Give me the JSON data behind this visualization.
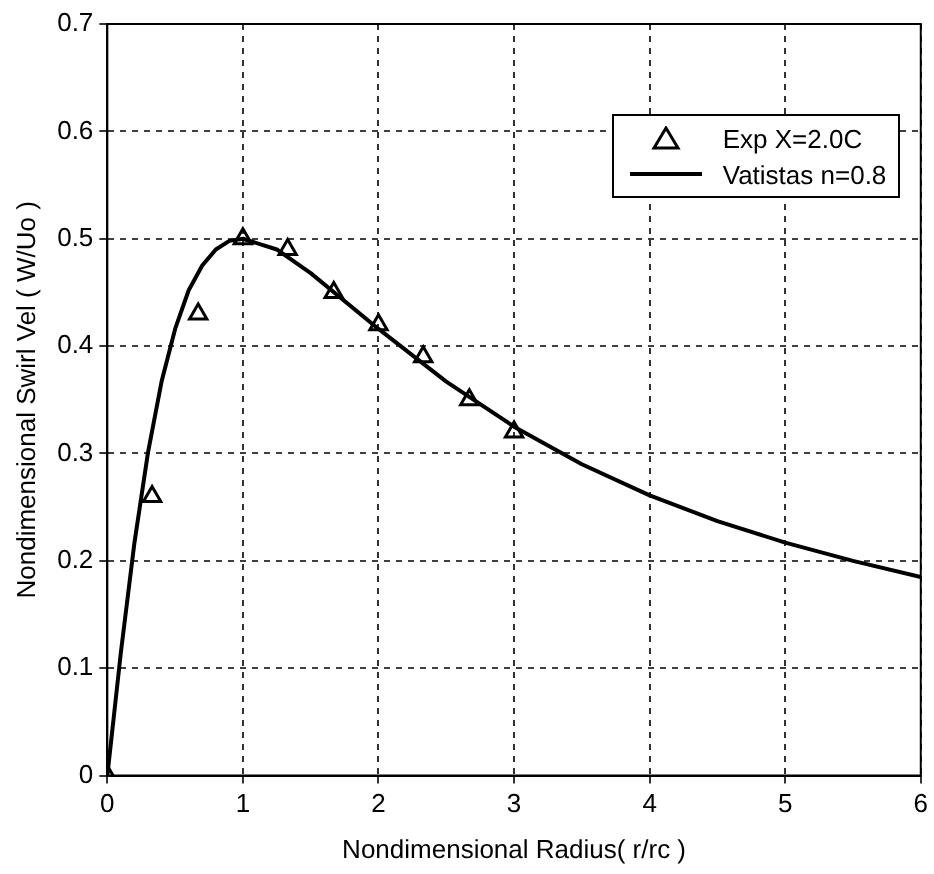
{
  "chart_data": {
    "type": "line",
    "xlabel": "Nondimensional Radius( r/rc )",
    "ylabel": "Nondimensional Swirl Vel ( W/Uo )",
    "xlim": [
      0,
      6
    ],
    "xticks": [
      0,
      1,
      2,
      3,
      4,
      5,
      6
    ],
    "ylim": [
      0,
      0.7
    ],
    "yticks": [
      0,
      0.1,
      0.2,
      0.3,
      0.4,
      0.5,
      0.6,
      0.7
    ],
    "grid": true,
    "legend": "top right",
    "series": [
      {
        "name": "Exp X=2.0C",
        "type": "scatter",
        "marker": "triangle",
        "color": "#000000",
        "x": [
          0,
          0.33,
          0.67,
          1.0,
          1.33,
          1.67,
          2.0,
          2.33,
          2.67,
          3.0
        ],
        "values": [
          0,
          0.26,
          0.43,
          0.5,
          0.49,
          0.45,
          0.42,
          0.39,
          0.35,
          0.32
        ]
      },
      {
        "name": "Vatistas n=0.8",
        "color": "#000000",
        "line_style": "solid",
        "marker": "none",
        "x": [
          0,
          0.1,
          0.2,
          0.3,
          0.4,
          0.5,
          0.6,
          0.7,
          0.8,
          0.9,
          1,
          1.25,
          1.5,
          2,
          2.5,
          3,
          3.5,
          4,
          4.5,
          5,
          5.5,
          6
        ],
        "values": [
          0,
          0.115,
          0.217,
          0.301,
          0.367,
          0.416,
          0.452,
          0.475,
          0.49,
          0.498,
          0.5,
          0.49,
          0.468,
          0.416,
          0.367,
          0.325,
          0.29,
          0.261,
          0.237,
          0.217,
          0.2,
          0.185
        ]
      }
    ]
  }
}
